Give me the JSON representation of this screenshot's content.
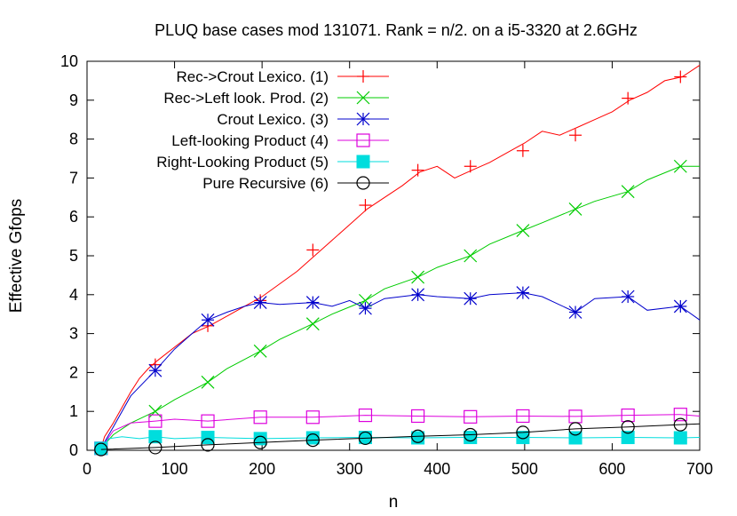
{
  "chart_data": {
    "type": "line",
    "title": "PLUQ base cases mod 131071. Rank = n/2. on a i5-3320 at 2.6GHz",
    "xlabel": "n",
    "ylabel": "Effective Gfops",
    "xlim": [
      0,
      700
    ],
    "ylim": [
      0,
      10
    ],
    "x_ticks": [
      "0",
      "100",
      "200",
      "300",
      "400",
      "500",
      "600",
      "700"
    ],
    "y_ticks": [
      "0",
      "1",
      "2",
      "3",
      "4",
      "5",
      "6",
      "7",
      "8",
      "9",
      "10"
    ],
    "grid": false,
    "legend_position": "top-left",
    "series": [
      {
        "name": "Rec->Crout Lexico. (1)",
        "color": "#ff0000",
        "marker": "plus",
        "x": [
          16,
          20,
          30,
          40,
          50,
          60,
          70,
          80,
          100,
          120,
          140,
          160,
          180,
          200,
          240,
          260,
          280,
          300,
          320,
          340,
          360,
          380,
          400,
          420,
          440,
          460,
          480,
          500,
          520,
          540,
          560,
          580,
          600,
          620,
          640,
          660,
          680,
          700
        ],
        "y": [
          0.05,
          0.35,
          0.7,
          1.1,
          1.5,
          1.85,
          2.1,
          2.3,
          2.65,
          3.0,
          3.2,
          3.45,
          3.7,
          3.95,
          4.6,
          5.0,
          5.4,
          5.8,
          6.2,
          6.5,
          6.8,
          7.15,
          7.3,
          7.0,
          7.2,
          7.4,
          7.65,
          7.9,
          8.2,
          8.1,
          8.3,
          8.5,
          8.7,
          9.0,
          9.2,
          9.5,
          9.6,
          9.9
        ],
        "marker_x": [
          16,
          78,
          138,
          198,
          258,
          318,
          378,
          438,
          498,
          558,
          618,
          678
        ],
        "marker_y": [
          0.05,
          2.2,
          3.2,
          3.85,
          5.15,
          6.3,
          7.2,
          7.3,
          7.7,
          8.1,
          9.05,
          9.6
        ]
      },
      {
        "name": "Rec->Left look. Prod. (2)",
        "color": "#00cc00",
        "marker": "x",
        "x": [
          16,
          30,
          50,
          78,
          100,
          138,
          160,
          198,
          220,
          258,
          280,
          318,
          340,
          378,
          400,
          438,
          460,
          498,
          520,
          558,
          580,
          618,
          640,
          678,
          700
        ],
        "y": [
          0.05,
          0.4,
          0.7,
          1.0,
          1.3,
          1.75,
          2.1,
          2.55,
          2.85,
          3.25,
          3.5,
          3.85,
          4.15,
          4.45,
          4.7,
          5.0,
          5.3,
          5.65,
          5.85,
          6.2,
          6.4,
          6.65,
          6.95,
          7.3,
          7.3
        ],
        "marker_x": [
          16,
          78,
          138,
          198,
          258,
          318,
          378,
          438,
          498,
          558,
          618,
          678
        ],
        "marker_y": [
          0.05,
          1.0,
          1.75,
          2.55,
          3.25,
          3.85,
          4.45,
          5.0,
          5.65,
          6.2,
          6.65,
          7.3
        ]
      },
      {
        "name": "Crout Lexico. (3)",
        "color": "#0000cc",
        "marker": "star",
        "x": [
          16,
          30,
          50,
          78,
          100,
          120,
          138,
          160,
          180,
          198,
          220,
          258,
          280,
          300,
          318,
          340,
          378,
          400,
          438,
          460,
          498,
          520,
          558,
          580,
          618,
          640,
          678,
          700
        ],
        "y": [
          0.05,
          0.6,
          1.4,
          2.05,
          2.6,
          3.0,
          3.35,
          3.55,
          3.7,
          3.8,
          3.75,
          3.8,
          3.7,
          3.85,
          3.65,
          3.9,
          4.0,
          3.95,
          3.9,
          4.0,
          4.05,
          3.95,
          3.55,
          3.9,
          3.95,
          3.6,
          3.7,
          3.35
        ],
        "marker_x": [
          16,
          78,
          138,
          198,
          258,
          318,
          378,
          438,
          498,
          558,
          618,
          678
        ],
        "marker_y": [
          0.05,
          2.05,
          3.35,
          3.8,
          3.8,
          3.65,
          4.0,
          3.9,
          4.05,
          3.55,
          3.95,
          3.7
        ]
      },
      {
        "name": "Left-looking Product (4)",
        "color": "#dd00dd",
        "marker": "square-open",
        "x": [
          16,
          30,
          50,
          78,
          100,
          138,
          198,
          258,
          318,
          378,
          438,
          498,
          558,
          618,
          678,
          700
        ],
        "y": [
          0.05,
          0.5,
          0.7,
          0.75,
          0.8,
          0.75,
          0.85,
          0.85,
          0.9,
          0.88,
          0.86,
          0.88,
          0.87,
          0.9,
          0.92,
          0.88
        ],
        "marker_x": [
          16,
          78,
          138,
          198,
          258,
          318,
          378,
          438,
          498,
          558,
          618,
          678
        ],
        "marker_y": [
          0.05,
          0.75,
          0.75,
          0.85,
          0.85,
          0.9,
          0.88,
          0.86,
          0.88,
          0.87,
          0.9,
          0.92
        ]
      },
      {
        "name": "Right-Looking Product (5)",
        "color": "#00dddd",
        "marker": "square-filled",
        "x": [
          16,
          25,
          40,
          60,
          78,
          100,
          138,
          198,
          258,
          318,
          378,
          438,
          498,
          558,
          618,
          678,
          700
        ],
        "y": [
          0.05,
          0.3,
          0.35,
          0.3,
          0.35,
          0.3,
          0.33,
          0.3,
          0.32,
          0.33,
          0.32,
          0.33,
          0.33,
          0.32,
          0.33,
          0.32,
          0.33
        ],
        "marker_x": [
          16,
          78,
          138,
          198,
          258,
          318,
          378,
          438,
          498,
          558,
          618,
          678
        ],
        "marker_y": [
          0.05,
          0.35,
          0.33,
          0.3,
          0.32,
          0.33,
          0.32,
          0.33,
          0.33,
          0.32,
          0.33,
          0.32
        ]
      },
      {
        "name": "Pure Recursive (6)",
        "color": "#000000",
        "marker": "circle-open",
        "x": [
          16,
          78,
          138,
          198,
          258,
          318,
          378,
          438,
          498,
          558,
          618,
          678,
          700
        ],
        "y": [
          0.02,
          0.07,
          0.14,
          0.2,
          0.26,
          0.31,
          0.36,
          0.4,
          0.46,
          0.55,
          0.6,
          0.66,
          0.68
        ],
        "marker_x": [
          16,
          78,
          138,
          198,
          258,
          318,
          378,
          438,
          498,
          558,
          618,
          678
        ],
        "marker_y": [
          0.02,
          0.07,
          0.14,
          0.2,
          0.26,
          0.31,
          0.36,
          0.4,
          0.46,
          0.55,
          0.6,
          0.66
        ]
      }
    ]
  }
}
